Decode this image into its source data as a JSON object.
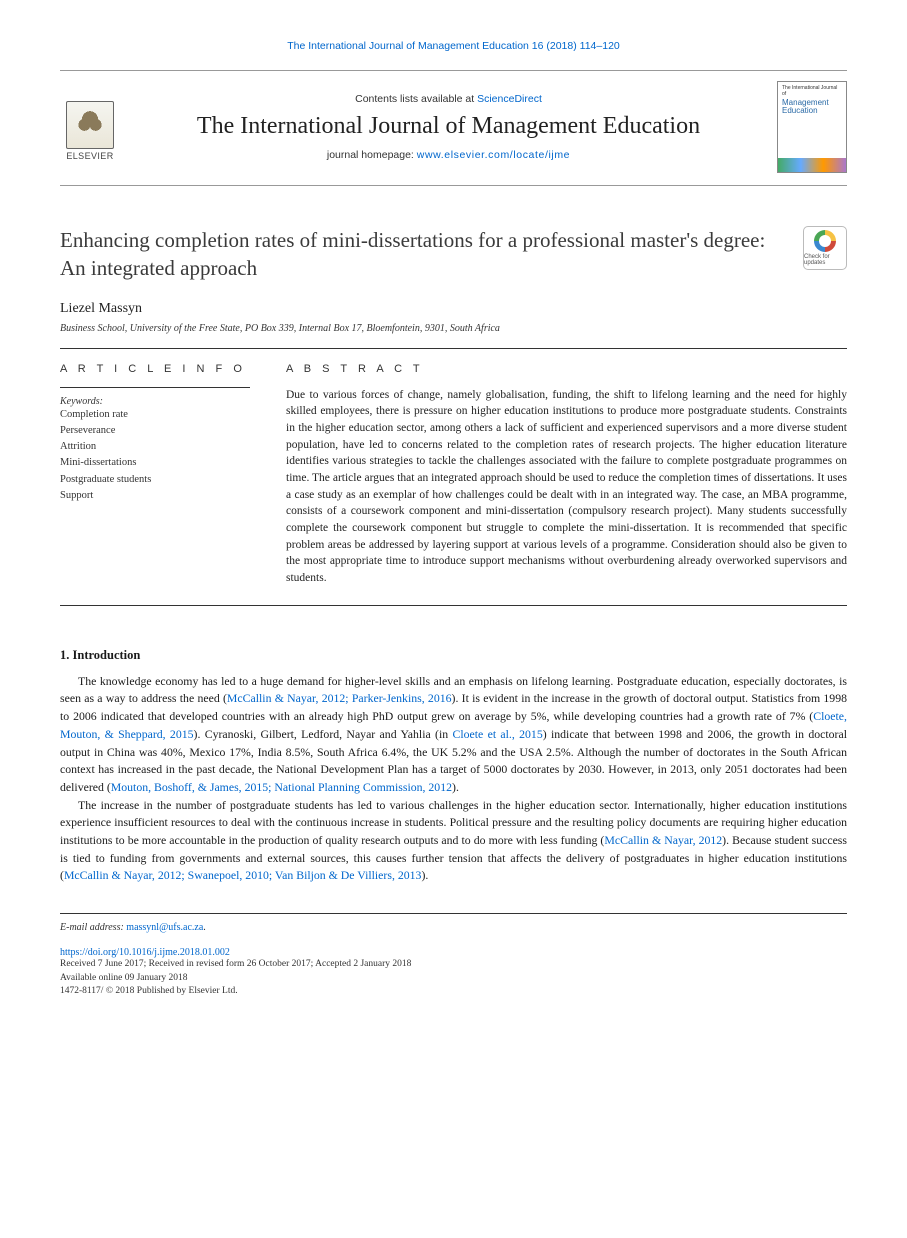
{
  "colors": {
    "link": "#0066cc",
    "text": "#1a1a1a",
    "rule": "#333333",
    "background": "#ffffff"
  },
  "typography": {
    "body_family": "Georgia, serif",
    "sans_family": "Arial, sans-serif",
    "title_size_pt": 21,
    "journal_title_size_pt": 24,
    "body_size_pt": 11.8,
    "abstract_size_pt": 11.5
  },
  "header": {
    "citation": "The International Journal of Management Education 16 (2018) 114–120",
    "contents_prefix": "Contents lists available at ",
    "sciencedirect": "ScienceDirect",
    "journal_title": "The International Journal of Management Education",
    "homepage_prefix": "journal homepage: ",
    "homepage_url": "www.elsevier.com/locate/ijme",
    "publisher_name": "ELSEVIER",
    "cover": {
      "small_line": "The International Journal of",
      "title_line": "Management Education"
    }
  },
  "badge": {
    "label": "Check for updates"
  },
  "article": {
    "title": "Enhancing completion rates of mini-dissertations for a professional master's degree: An integrated approach",
    "author": "Liezel Massyn",
    "affiliation": "Business School, University of the Free State, PO Box 339, Internal Box 17, Bloemfontein, 9301, South Africa"
  },
  "info": {
    "label": "A R T I C L E  I N F O",
    "keywords_head": "Keywords:",
    "keywords": [
      "Completion rate",
      "Perseverance",
      "Attrition",
      "Mini-dissertations",
      "Postgraduate students",
      "Support"
    ]
  },
  "abstract": {
    "label": "A B S T R A C T",
    "text": "Due to various forces of change, namely globalisation, funding, the shift to lifelong learning and the need for highly skilled employees, there is pressure on higher education institutions to produce more postgraduate students. Constraints in the higher education sector, among others a lack of sufficient and experienced supervisors and a more diverse student population, have led to concerns related to the completion rates of research projects. The higher education literature identifies various strategies to tackle the challenges associated with the failure to complete postgraduate programmes on time. The article argues that an integrated approach should be used to reduce the completion times of dissertations. It uses a case study as an exemplar of how challenges could be dealt with in an integrated way. The case, an MBA programme, consists of a coursework component and mini-dissertation (compulsory research project). Many students successfully complete the coursework component but struggle to complete the mini-dissertation. It is recommended that specific problem areas be addressed by layering support at various levels of a programme. Consideration should also be given to the most appropriate time to introduce support mechanisms without overburdening already overworked supervisors and students."
  },
  "section1": {
    "heading": "1. Introduction",
    "p1_a": "The knowledge economy has led to a huge demand for higher-level skills and an emphasis on lifelong learning. Postgraduate education, especially doctorates, is seen as a way to address the need (",
    "p1_c1": "McCallin & Nayar, 2012; Parker-Jenkins, 2016",
    "p1_b": "). It is evident in the increase in the growth of doctoral output. Statistics from 1998 to 2006 indicated that developed countries with an already high PhD output grew on average by 5%, while developing countries had a growth rate of 7% (",
    "p1_c2": "Cloete, Mouton, & Sheppard, 2015",
    "p1_c": "). Cyranoski, Gilbert, Ledford, Nayar and Yahlia (in ",
    "p1_c3": "Cloete et al., 2015",
    "p1_d": ") indicate that between 1998 and 2006, the growth in doctoral output in China was 40%, Mexico 17%, India 8.5%, South Africa 6.4%, the UK 5.2% and the USA 2.5%. Although the number of doctorates in the South African context has increased in the past decade, the National Development Plan has a target of 5000 doctorates by 2030. However, in 2013, only 2051 doctorates had been delivered (",
    "p1_c4": "Mouton, Boshoff, & James, 2015; National Planning Commission, 2012",
    "p1_e": ").",
    "p2_a": "The increase in the number of postgraduate students has led to various challenges in the higher education sector. Internationally, higher education institutions experience insufficient resources to deal with the continuous increase in students. Political pressure and the resulting policy documents are requiring higher education institutions to be more accountable in the production of quality research outputs and to do more with less funding (",
    "p2_c1": "McCallin & Nayar, 2012",
    "p2_b": "). Because student success is tied to funding from governments and external sources, this causes further tension that affects the delivery of postgraduates in higher education institutions (",
    "p2_c2": "McCallin & Nayar, 2012; Swanepoel, 2010; Van Biljon & De Villiers, 2013",
    "p2_c": ")."
  },
  "footer": {
    "email_label": "E-mail address: ",
    "email": "massynl@ufs.ac.za",
    "email_suffix": ".",
    "doi": "https://doi.org/10.1016/j.ijme.2018.01.002",
    "received": "Received 7 June 2017; Received in revised form 26 October 2017; Accepted 2 January 2018",
    "available": "Available online 09 January 2018",
    "copyright": "1472-8117/ © 2018 Published by Elsevier Ltd."
  }
}
